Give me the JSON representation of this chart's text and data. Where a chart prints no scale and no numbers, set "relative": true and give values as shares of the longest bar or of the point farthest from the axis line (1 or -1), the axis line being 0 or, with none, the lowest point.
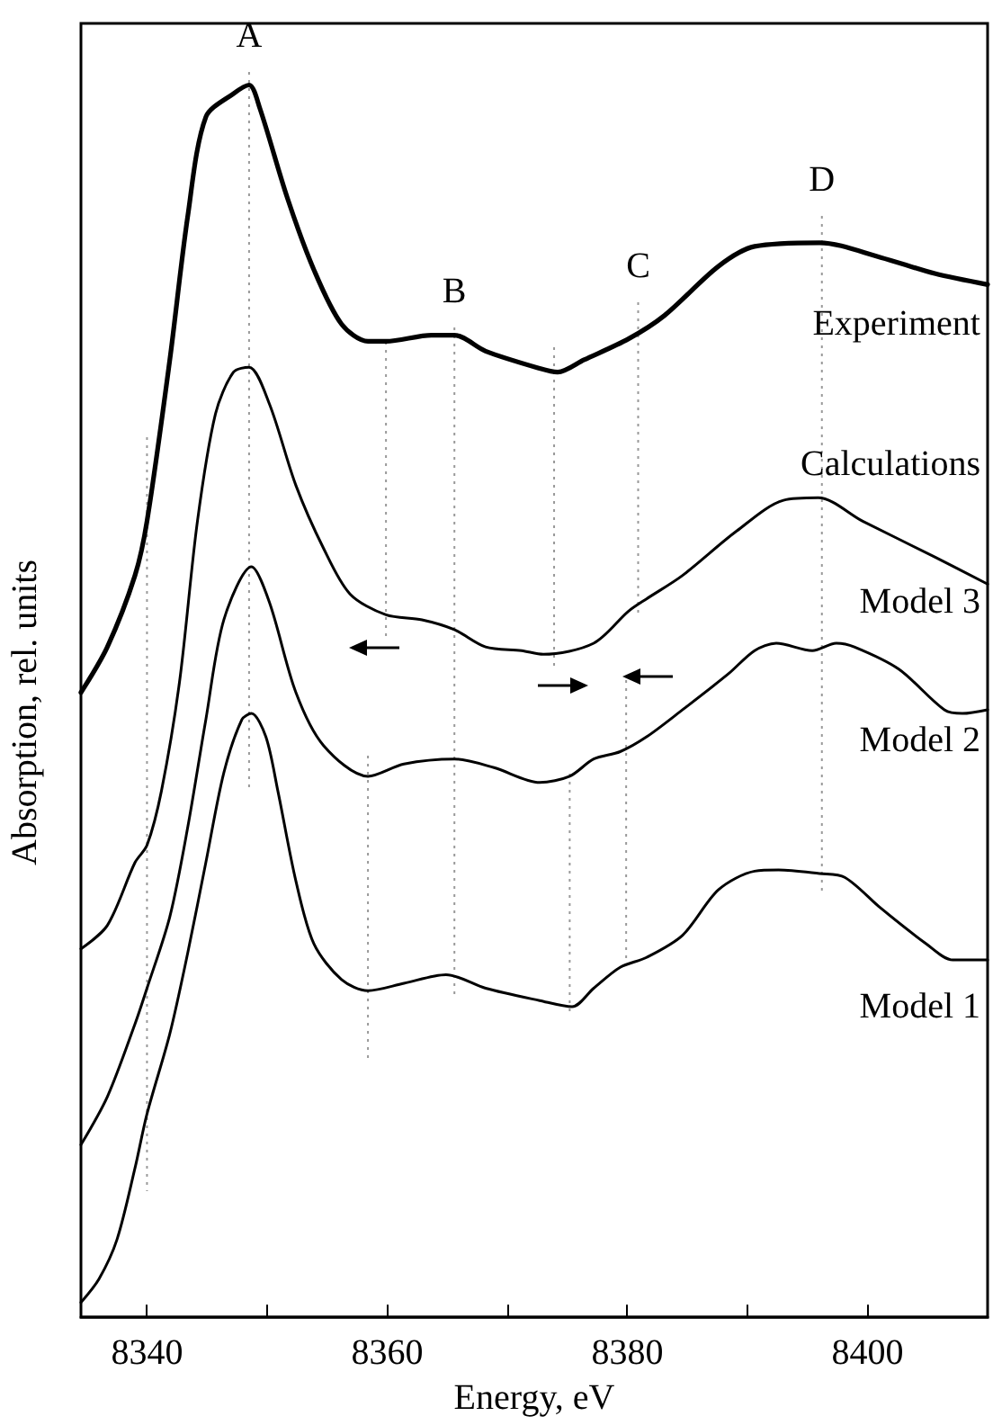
{
  "chart_data": {
    "type": "line",
    "relative": true,
    "xlabel": "Energy, eV",
    "ylabel": "Absorption, rel. units",
    "xlim": [
      8334.5,
      8410
    ],
    "xticks": [
      8340,
      {
        "value": 8350,
        "label": null
      },
      8360,
      {
        "value": 8370,
        "label": null
      },
      8380,
      {
        "value": 8390,
        "label": null
      },
      8400
    ],
    "marker": "none",
    "line_style": "solid",
    "annotations": [
      "Calculations"
    ],
    "ref_lines": [
      {
        "axis": "x",
        "value": 8340,
        "color": "#999999",
        "line_style": "dotted"
      },
      {
        "axis": "x",
        "value": 8348.5,
        "label": "A",
        "color": "#999999",
        "line_style": "dotted"
      },
      {
        "axis": "x",
        "value": 8359.9,
        "color": "#999999",
        "line_style": "dotted"
      },
      {
        "axis": "x",
        "value": 8365.6,
        "label": "B",
        "color": "#999999",
        "line_style": "dotted"
      },
      {
        "axis": "x",
        "value": 8373.9,
        "color": "#999999",
        "line_style": "dotted"
      },
      {
        "axis": "x",
        "value": 8380.9,
        "label": "C",
        "color": "#999999",
        "line_style": "dotted"
      },
      {
        "axis": "x",
        "value": 8379.9,
        "color": "#999999",
        "line_style": "dotted"
      },
      {
        "axis": "x",
        "value": 8396.2,
        "label": "D",
        "color": "#999999",
        "line_style": "dotted"
      },
      {
        "axis": "x",
        "value": 8358.4,
        "color": "#999999",
        "line_style": "dotted"
      },
      {
        "axis": "x",
        "value": 8375.2,
        "color": "#999999",
        "line_style": "dotted"
      }
    ],
    "series": [
      {
        "name": "Experiment",
        "color": "#000000",
        "x": [
          8334.5,
          8336.7,
          8339.0,
          8340,
          8341.9,
          8343.4,
          8344.9,
          8347.2,
          8348.5,
          8349.4,
          8351.7,
          8353.9,
          8356.2,
          8358.4,
          8359.9,
          8363.7,
          8365.6,
          8368.2,
          8372.7,
          8374.2,
          8376.4,
          8380.1,
          8383.1,
          8387.6,
          8390.6,
          8396.0,
          8401.1,
          8405.6,
          8410
        ],
        "values": [
          0.507,
          0.544,
          0.602,
          0.646,
          0.777,
          0.894,
          0.974,
          0.993,
          1,
          0.981,
          0.908,
          0.85,
          0.806,
          0.792,
          0.792,
          0.797,
          0.797,
          0.784,
          0.77,
          0.767,
          0.777,
          0.794,
          0.813,
          0.853,
          0.869,
          0.872,
          0.86,
          0.847,
          0.838
        ]
      },
      {
        "name": "Model 3",
        "color": "#000000",
        "x": [
          8334.5,
          8336.7,
          8339.0,
          8340,
          8341.2,
          8342.7,
          8344.2,
          8345.7,
          8347.2,
          8348.5,
          8350.2,
          8352.4,
          8354.7,
          8356.9,
          8359.9,
          8362.9,
          8365.6,
          8368.2,
          8371.2,
          8373.0,
          8377.2,
          8380.1,
          8381.6,
          8384.6,
          8389.1,
          8393.0,
          8395.9,
          8399.6,
          8405.6,
          8410
        ],
        "values": [
          0.299,
          0.318,
          0.369,
          0.383,
          0.427,
          0.515,
          0.646,
          0.733,
          0.767,
          0.771,
          0.741,
          0.675,
          0.624,
          0.587,
          0.57,
          0.566,
          0.558,
          0.544,
          0.541,
          0.538,
          0.547,
          0.573,
          0.583,
          0.602,
          0.638,
          0.663,
          0.665,
          0.646,
          0.617,
          0.595
        ]
      },
      {
        "name": "Model 2",
        "color": "#000000",
        "x": [
          8334.5,
          8336.7,
          8339.0,
          8340,
          8341.9,
          8343.4,
          8344.9,
          8346.4,
          8348.7,
          8350.2,
          8352.4,
          8354.7,
          8358.4,
          8361.4,
          8365.6,
          8368.9,
          8372.7,
          8375.2,
          8377.2,
          8379.4,
          8381.6,
          8384.6,
          8388.4,
          8390.6,
          8392.4,
          8395.4,
          8397.4,
          8398.9,
          8402.6,
          8406.4,
          8407.9,
          8410
        ],
        "values": [
          0.14,
          0.179,
          0.238,
          0.267,
          0.325,
          0.398,
          0.485,
          0.566,
          0.609,
          0.58,
          0.507,
          0.464,
          0.439,
          0.449,
          0.453,
          0.446,
          0.434,
          0.439,
          0.453,
          0.459,
          0.471,
          0.493,
          0.522,
          0.541,
          0.547,
          0.541,
          0.547,
          0.544,
          0.526,
          0.493,
          0.49,
          0.493
        ]
      },
      {
        "name": "Model 1",
        "color": "#000000",
        "x": [
          8334.5,
          8336.0,
          8337.5,
          8339.0,
          8340,
          8341.9,
          8343.4,
          8344.9,
          8346.4,
          8347.9,
          8348.7,
          8349.9,
          8350.9,
          8352.4,
          8353.9,
          8356.2,
          8358.4,
          8361.4,
          8364.9,
          8368.2,
          8372.7,
          8375.4,
          8377.2,
          8379.4,
          8381.6,
          8384.6,
          8387.6,
          8390.6,
          8392.6,
          8396.0,
          8398.1,
          8401.1,
          8404.9,
          8407.1,
          8410
        ],
        "values": [
          0.012,
          0.031,
          0.063,
          0.121,
          0.165,
          0.23,
          0.296,
          0.369,
          0.442,
          0.485,
          0.49,
          0.471,
          0.427,
          0.354,
          0.303,
          0.274,
          0.265,
          0.271,
          0.278,
          0.267,
          0.257,
          0.252,
          0.267,
          0.284,
          0.292,
          0.31,
          0.347,
          0.362,
          0.363,
          0.36,
          0.357,
          0.332,
          0.303,
          0.29,
          0.29
        ]
      }
    ]
  }
}
